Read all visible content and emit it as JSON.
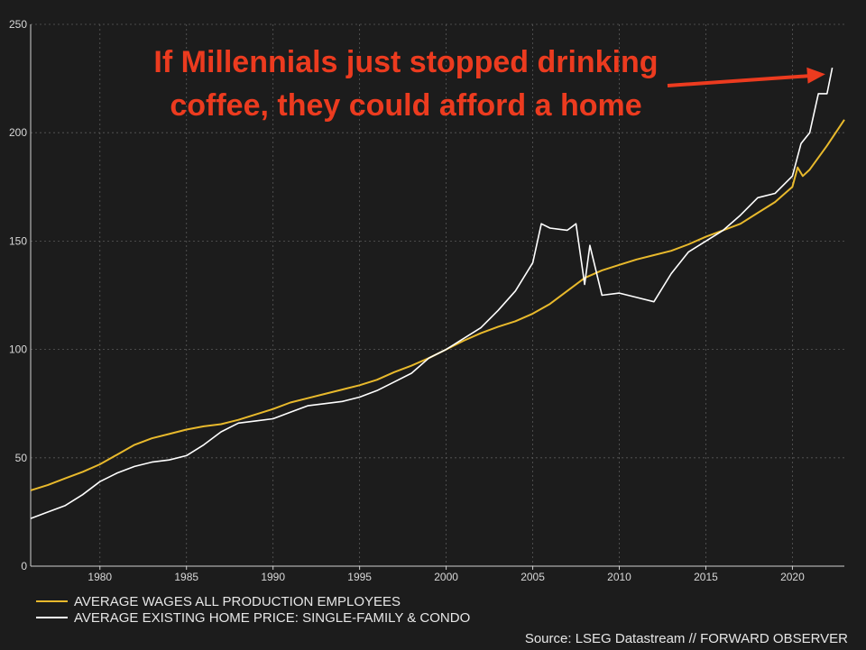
{
  "chart_data": {
    "type": "line",
    "title": "",
    "xlabel": "",
    "ylabel": "",
    "xlim": [
      1976,
      2023
    ],
    "ylim": [
      0,
      250
    ],
    "grid": true,
    "legend_position": "bottom-left",
    "x_ticks": [
      "1980",
      "1985",
      "1990",
      "1995",
      "2000",
      "2005",
      "2010",
      "2015",
      "2020"
    ],
    "y_ticks": [
      "0",
      "50",
      "100",
      "150",
      "200",
      "250"
    ],
    "series": [
      {
        "name": "AVERAGE WAGES ALL PRODUCTION EMPLOYEES",
        "color": "#e8b92c",
        "x": [
          1976,
          1977,
          1978,
          1979,
          1980,
          1981,
          1982,
          1983,
          1984,
          1985,
          1986,
          1987,
          1988,
          1989,
          1990,
          1991,
          1992,
          1993,
          1994,
          1995,
          1996,
          1997,
          1998,
          1999,
          2000,
          2001,
          2002,
          2003,
          2004,
          2005,
          2006,
          2007,
          2008,
          2009,
          2010,
          2011,
          2012,
          2013,
          2014,
          2015,
          2016,
          2017,
          2018,
          2019,
          2020,
          2020.3,
          2020.6,
          2021,
          2022,
          2023
        ],
        "values": [
          35,
          37.5,
          40.5,
          43.5,
          47,
          51.5,
          56,
          59,
          61,
          63,
          64.5,
          65.5,
          67.5,
          70,
          72.5,
          75.5,
          77.5,
          79.5,
          81.5,
          83.5,
          86,
          89.5,
          92.5,
          96,
          100,
          104,
          107.5,
          110.5,
          113,
          116.5,
          121,
          127,
          133,
          136.5,
          139,
          141.5,
          143.5,
          145.5,
          148.5,
          152,
          155,
          158,
          163,
          168,
          175,
          184,
          180,
          183,
          194,
          206
        ]
      },
      {
        "name": "AVERAGE EXISTING HOME PRICE: SINGLE-FAMILY & CONDO",
        "color": "#ffffff",
        "x": [
          1976,
          1977,
          1978,
          1979,
          1980,
          1981,
          1982,
          1983,
          1984,
          1985,
          1986,
          1987,
          1988,
          1989,
          1990,
          1991,
          1992,
          1993,
          1994,
          1995,
          1996,
          1997,
          1998,
          1999,
          2000,
          2001,
          2002,
          2003,
          2004,
          2005,
          2005.5,
          2006,
          2007,
          2007.5,
          2008,
          2008.3,
          2009,
          2010,
          2011,
          2012,
          2013,
          2014,
          2015,
          2016,
          2017,
          2018,
          2019,
          2020,
          2020.5,
          2021,
          2021.5,
          2022,
          2022.3
        ],
        "values": [
          22,
          25,
          28,
          33,
          39,
          43,
          46,
          48,
          49,
          51,
          56,
          62,
          66,
          67,
          68,
          71,
          74,
          75,
          76,
          78,
          81,
          85,
          89,
          96,
          100,
          105,
          110,
          118,
          127,
          140,
          158,
          156,
          155,
          158,
          130,
          148,
          125,
          126,
          124,
          122,
          135,
          145,
          150,
          155,
          162,
          170,
          172,
          180,
          195,
          200,
          218,
          218,
          230
        ]
      }
    ],
    "annotation": {
      "lines": [
        "If Millennials just stopped drinking",
        "coffee, they could afford a home"
      ],
      "arrow_target": [
        2021.9,
        227
      ]
    },
    "source": "Source: LSEG Datastream // FORWARD OBSERVER"
  },
  "colors": {
    "background": "#1c1c1c",
    "grid": "#5a5a5a",
    "annotation": "#ec3b1f"
  }
}
